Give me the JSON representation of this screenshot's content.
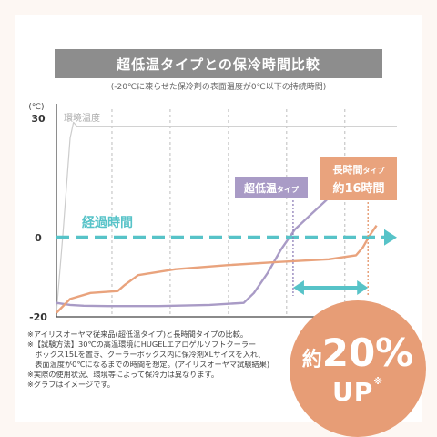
{
  "title": "超低温タイプとの保冷時間比較",
  "subtitle": "(-20℃に凍らせた保冷剤の表面温度が0℃以下の持続時間)",
  "chart_data": {
    "type": "line",
    "ylabel": "(℃)",
    "ylim": [
      -20,
      30
    ],
    "y_ticks": [
      "30",
      "0",
      "-20"
    ],
    "y_tick_values": [
      30,
      0,
      -20
    ],
    "xlim": [
      0,
      100
    ],
    "grid": "vertical dashed",
    "series": [
      {
        "name": "環境温度",
        "color": "#cccccc",
        "x": [
          0,
          2,
          4,
          5,
          6,
          8,
          15,
          30,
          50,
          70,
          90,
          100
        ],
        "y": [
          -19,
          2,
          25,
          29,
          28,
          28,
          28,
          28,
          28,
          28,
          28,
          28
        ]
      },
      {
        "name": "超低温タイプ",
        "color": "#a99bc6",
        "x": [
          0,
          4,
          8,
          15,
          30,
          45,
          55,
          58,
          62,
          66,
          70,
          75,
          80
        ],
        "y": [
          -16.5,
          -17,
          -17.2,
          -17.3,
          -17.3,
          -17,
          -16.5,
          -14,
          -9,
          -3,
          2,
          6,
          10
        ]
      },
      {
        "name": "長時間タイプ",
        "color": "#e9a37d",
        "x": [
          0,
          4,
          10,
          18,
          20,
          24,
          35,
          50,
          65,
          80,
          88,
          90,
          92,
          94
        ],
        "y": [
          -19,
          -15.5,
          -14,
          -13.5,
          -12,
          -9.5,
          -8,
          -7,
          -6.2,
          -5.5,
          -4.5,
          -2.5,
          0.5,
          3
        ]
      }
    ],
    "annotations": {
      "elapsed_time": "経過時間",
      "ultra_label": "超低温",
      "ultra_suffix": "タイプ",
      "long_label": "長時間",
      "long_suffix": "タイプ",
      "long_hours": "約16時間",
      "ambient_label": "環境温度"
    }
  },
  "notes": [
    "※アイリスオーヤマ従来品(超低温タイプ)と長時間タイプの比較。",
    "※【試験方法】30℃の高温環境にHUGELエアロゲルソフトクーラー",
    "　ボックス15Lを置き、クーラーボックス内に保冷剤XLサイズを入れ、",
    "　表面温度が0℃になるまでの時間を想定。(アイリスオーヤマ試験結果)",
    "※実際の使用状況、環境等によって保冷力は異なります。",
    "※グラフはイメージです。"
  ],
  "badge": {
    "prefix": "約",
    "value": "20%",
    "suffix": "UP",
    "mark": "※"
  },
  "colors": {
    "accent_blue": "#57c3c8",
    "ultra_purple": "#a99bc6",
    "long_orange": "#e9a37d",
    "badge": "#e79d76",
    "title_bar": "#8d8d8d"
  }
}
